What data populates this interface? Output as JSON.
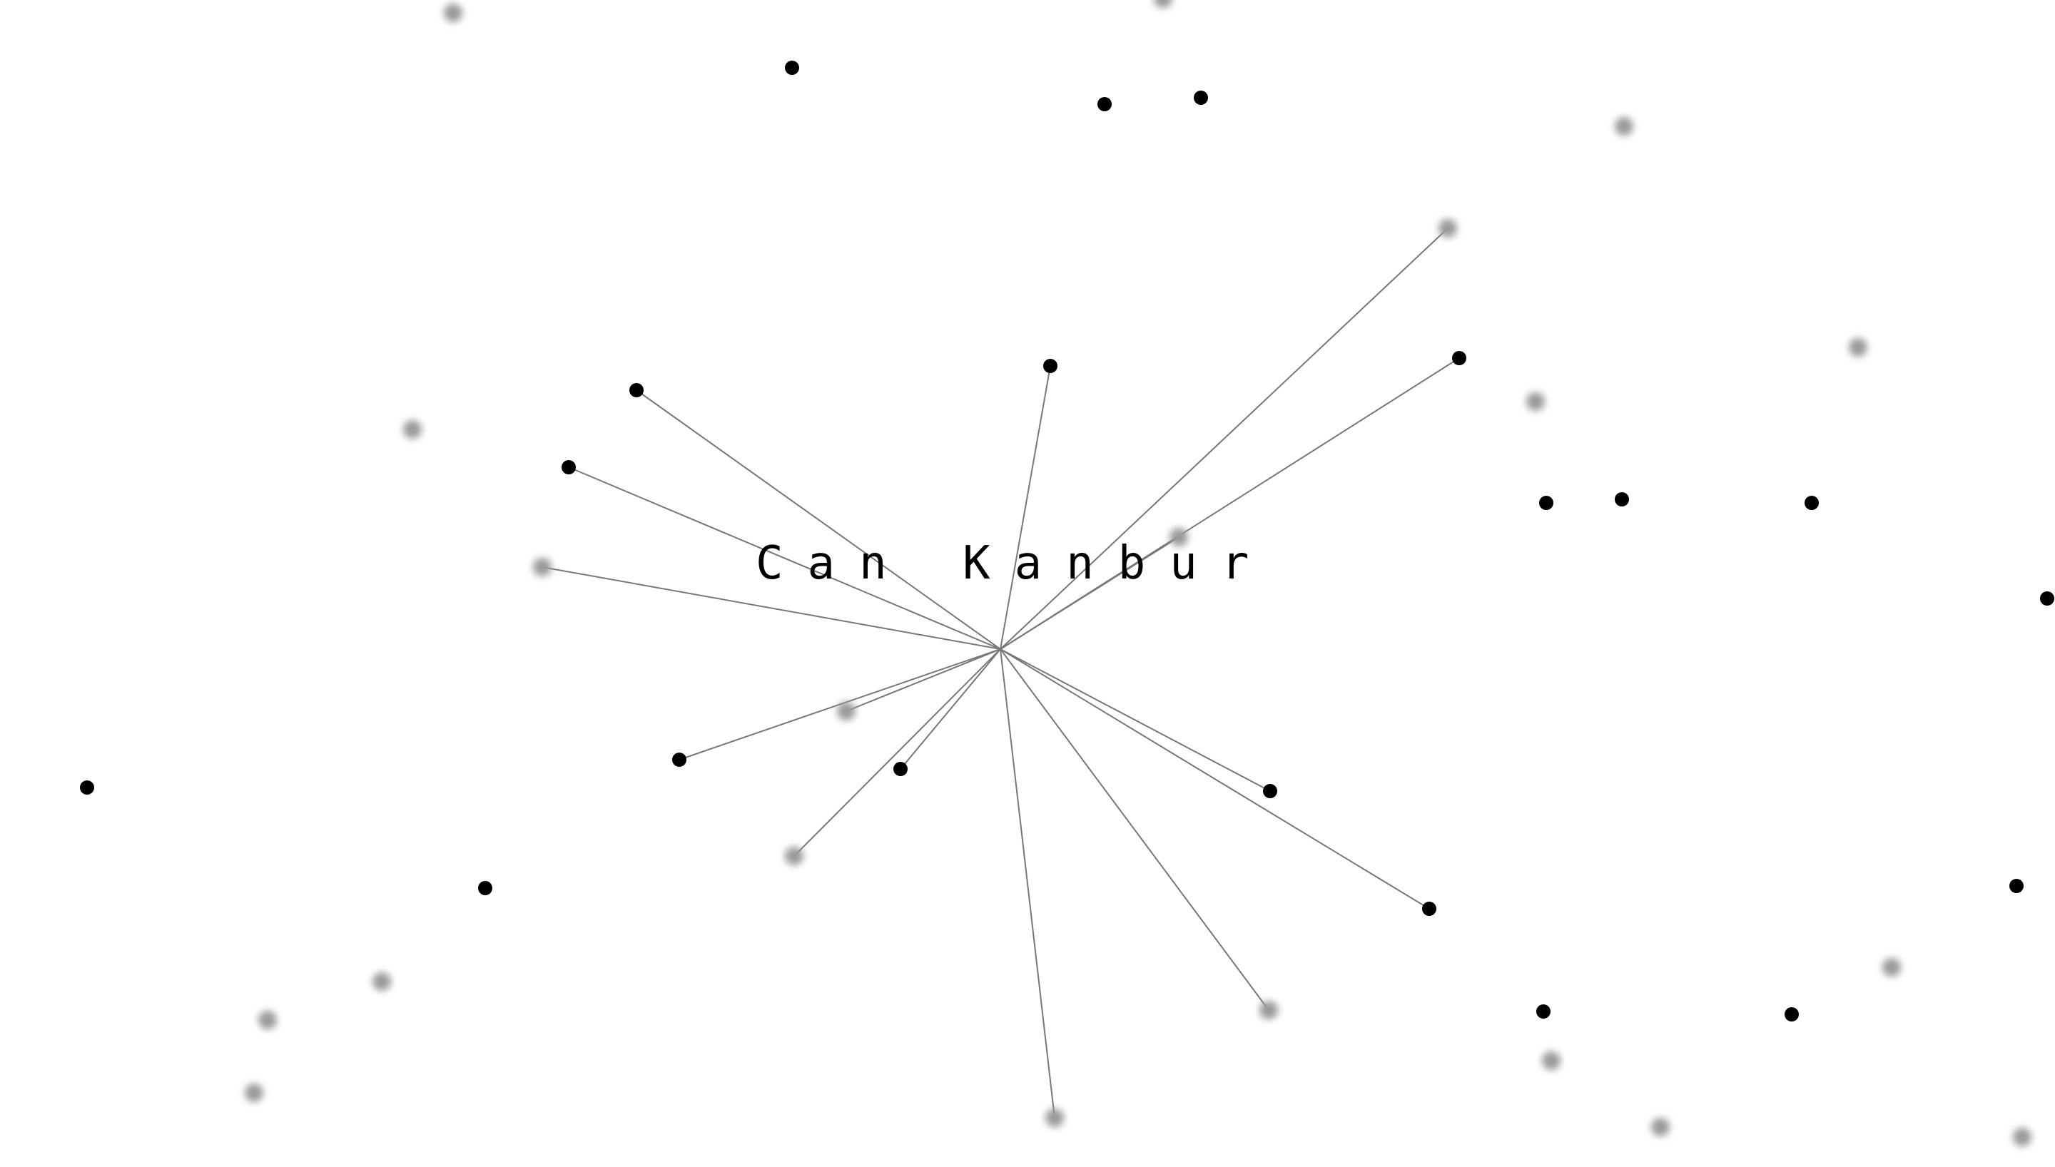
{
  "title": "Can Kanbur",
  "colors": {
    "background": "#ffffff",
    "node_sharp": "#000000",
    "node_blurred": "#9a9a9a",
    "link": "#777777",
    "text": "#000000"
  }
}
